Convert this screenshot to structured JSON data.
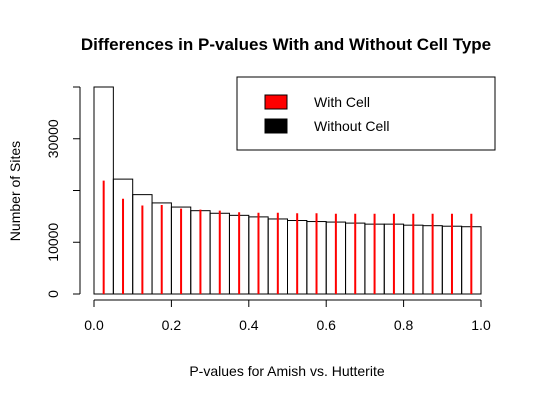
{
  "chart_data": {
    "type": "bar",
    "title": "Differences in P-values With and Without Cell Type",
    "xlabel": "P-values for Amish vs. Hutterite",
    "ylabel": "Number of Sites",
    "xlim": [
      0,
      1
    ],
    "ylim": [
      0,
      40000
    ],
    "x_ticks": [
      "0.0",
      "0.2",
      "0.4",
      "0.6",
      "0.8",
      "1.0"
    ],
    "y_ticks": [
      "0",
      "10000",
      "30000"
    ],
    "bin_width": 0.05,
    "bins": [
      0.0,
      0.05,
      0.1,
      0.15,
      0.2,
      0.25,
      0.3,
      0.35,
      0.4,
      0.45,
      0.5,
      0.55,
      0.6,
      0.65,
      0.7,
      0.75,
      0.8,
      0.85,
      0.9,
      0.95
    ],
    "series": [
      {
        "name": "With Cell",
        "color": "#ff0000",
        "style": "lines",
        "values": [
          21900,
          18400,
          17100,
          17200,
          16500,
          16300,
          16100,
          15800,
          15700,
          15700,
          15600,
          15600,
          15500,
          15500,
          15500,
          15500,
          15500,
          15500,
          15500,
          15500
        ]
      },
      {
        "name": "Without Cell",
        "color": "#000000",
        "style": "histogram",
        "values": [
          40000,
          22200,
          19200,
          17600,
          16800,
          16100,
          15600,
          15200,
          14900,
          14500,
          14200,
          14000,
          13900,
          13700,
          13500,
          13500,
          13300,
          13200,
          13100,
          13000
        ]
      }
    ],
    "legend": {
      "position": "top-right"
    }
  }
}
